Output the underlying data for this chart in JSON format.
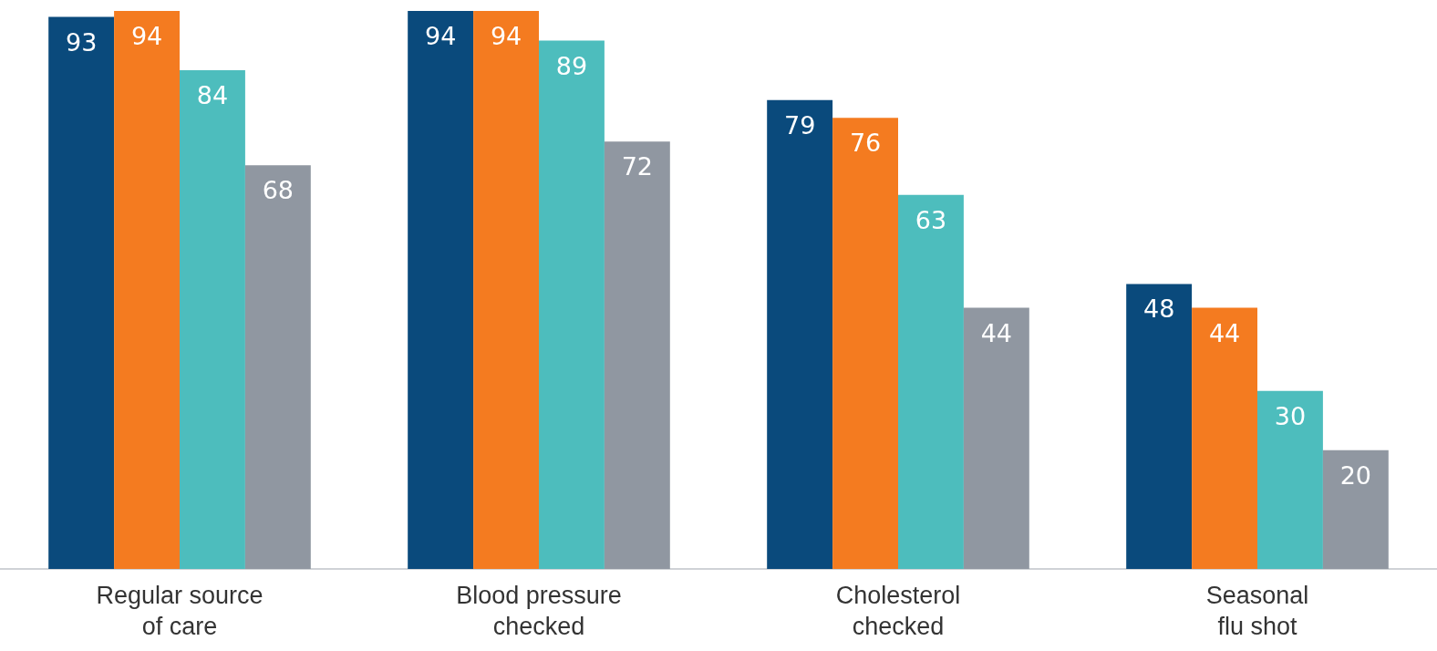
{
  "chart_data": {
    "type": "bar",
    "categories": [
      "Regular source of care",
      "Blood pressure checked",
      "Cholesterol checked",
      "Seasonal flu shot"
    ],
    "series": [
      {
        "color": "#0a4a7c",
        "values": [
          93,
          94,
          79,
          48
        ]
      },
      {
        "color": "#f47b20",
        "values": [
          94,
          94,
          76,
          44
        ]
      },
      {
        "color": "#4dbdbd",
        "values": [
          84,
          89,
          63,
          30
        ]
      },
      {
        "color": "#9097a1",
        "values": [
          68,
          72,
          44,
          20
        ]
      }
    ],
    "data_labels": true,
    "tick_labels": "x"
  }
}
